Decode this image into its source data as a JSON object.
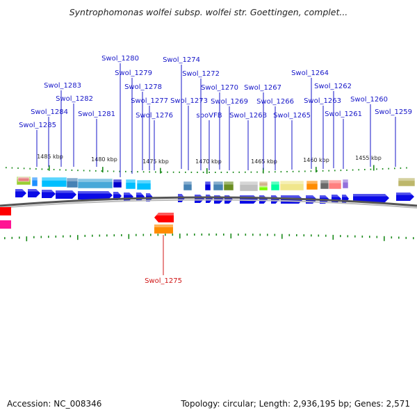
{
  "header": {
    "title": "Syntrophomonas wolfei subsp. wolfei str. Goettingen, complet..."
  },
  "footer": {
    "accession": "Accession: NC_008346",
    "summary": "Topology: circular; Length: 2,936,195 bp; Genes: 2,571"
  },
  "colors": {
    "label_forward": "#1515c8",
    "label_reverse": "#d01515",
    "arrow_blue": "#0a0ae6",
    "tick_green": "#1a8a1a"
  },
  "scale_ticks": [
    {
      "label": "1485 kbp"
    },
    {
      "label": "1480 kbp"
    },
    {
      "label": "1475 kbp"
    },
    {
      "label": "1470 kbp"
    },
    {
      "label": "1465 kbp"
    },
    {
      "label": "1460 kbp"
    },
    {
      "label": "1455 kbp"
    }
  ],
  "gene_labels": [
    {
      "name": "Swol_1280",
      "strand": "forward"
    },
    {
      "name": "Swol_1274",
      "strand": "forward"
    },
    {
      "name": "Swol_1279",
      "strand": "forward"
    },
    {
      "name": "Swol_1272",
      "strand": "forward"
    },
    {
      "name": "Swol_1264",
      "strand": "forward"
    },
    {
      "name": "Swol_1283",
      "strand": "forward"
    },
    {
      "name": "Swol_1278",
      "strand": "forward"
    },
    {
      "name": "Swol_1270",
      "strand": "forward"
    },
    {
      "name": "Swol_1267",
      "strand": "forward"
    },
    {
      "name": "Swol_1262",
      "strand": "forward"
    },
    {
      "name": "Swol_1282",
      "strand": "forward"
    },
    {
      "name": "Swol_1277",
      "strand": "forward"
    },
    {
      "name": "Swol_1273",
      "strand": "forward"
    },
    {
      "name": "Swol_1269",
      "strand": "forward"
    },
    {
      "name": "Swol_1266",
      "strand": "forward"
    },
    {
      "name": "Swol_1263",
      "strand": "forward"
    },
    {
      "name": "Swol_1260",
      "strand": "forward"
    },
    {
      "name": "Swol_1284",
      "strand": "forward"
    },
    {
      "name": "Swol_1281",
      "strand": "forward"
    },
    {
      "name": "Swol_1276",
      "strand": "forward"
    },
    {
      "name": "spoVFB",
      "strand": "forward"
    },
    {
      "name": "Swol_1268",
      "strand": "forward"
    },
    {
      "name": "Swol_1265",
      "strand": "forward"
    },
    {
      "name": "Swol_1261",
      "strand": "forward"
    },
    {
      "name": "Swol_1259",
      "strand": "forward"
    },
    {
      "name": "Swol_1285",
      "strand": "forward"
    },
    {
      "name": "Swol_1275",
      "strand": "reverse"
    }
  ]
}
